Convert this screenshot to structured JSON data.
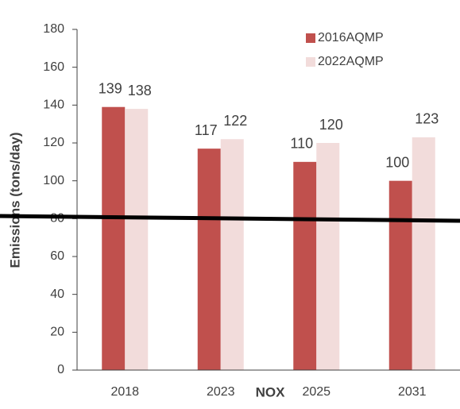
{
  "chart_data": {
    "type": "bar",
    "xlabel": "NOX",
    "ylabel": "Emissions (tons/day)",
    "categories": [
      "2018",
      "2023",
      "2025",
      "2031"
    ],
    "series": [
      {
        "name": "2016AQMP",
        "color": "#c0504d",
        "values": [
          139,
          117,
          110,
          100
        ]
      },
      {
        "name": "2022AQMP",
        "color": "#f2dcdb",
        "values": [
          138,
          122,
          120,
          123
        ]
      }
    ],
    "ylim": [
      0,
      180
    ],
    "yticks": [
      0,
      20,
      40,
      60,
      80,
      100,
      120,
      140,
      160,
      180
    ],
    "grid": false,
    "legend": "top-right"
  }
}
